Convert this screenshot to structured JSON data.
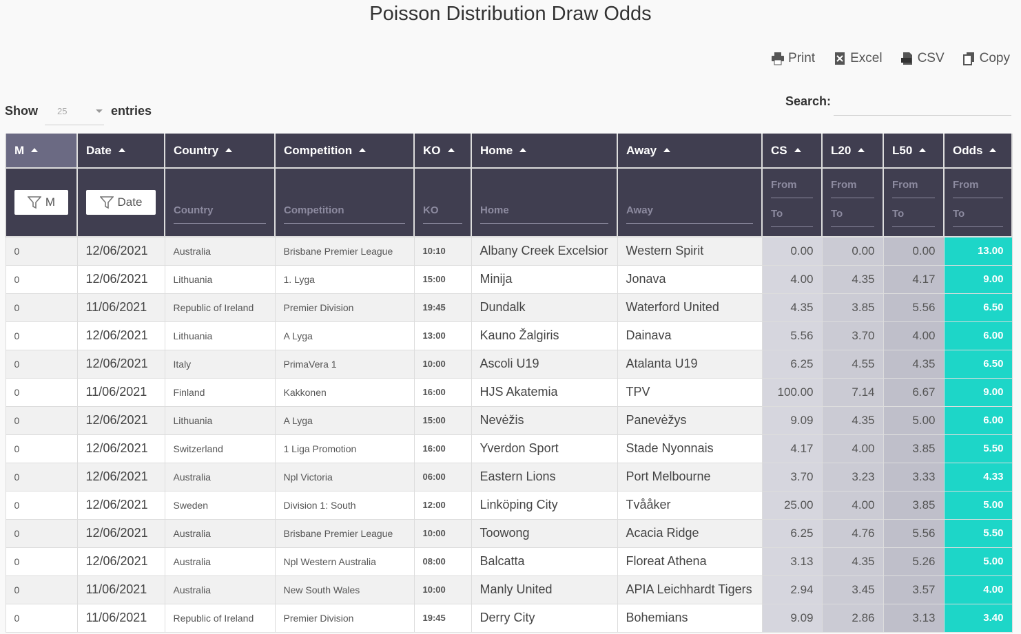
{
  "title": "Poisson Distribution Draw Odds",
  "toolbar": [
    "Print",
    "Excel",
    "CSV",
    "Copy"
  ],
  "length": {
    "show": "Show",
    "value": "25",
    "entries": "entries"
  },
  "search": {
    "label": "Search:"
  },
  "table": {
    "columns": [
      "M",
      "Date",
      "Country",
      "Competition",
      "KO",
      "Home",
      "Away",
      "CS",
      "L20",
      "L50",
      "Odds"
    ],
    "filters": [
      "M",
      "Date",
      "Country",
      "Competition",
      "KO",
      "Home",
      "Away"
    ],
    "range": {
      "from": "From",
      "to": "To"
    },
    "rows": [
      [
        "0",
        "12/06/2021",
        "Australia",
        "Brisbane Premier League",
        "10:10",
        "Albany Creek Excelsior",
        "Western Spirit",
        "0.00",
        "0.00",
        "0.00",
        "13.00"
      ],
      [
        "0",
        "12/06/2021",
        "Lithuania",
        "1. Lyga",
        "15:00",
        "Minija",
        "Jonava",
        "4.00",
        "4.35",
        "4.17",
        "9.00"
      ],
      [
        "0",
        "11/06/2021",
        "Republic of Ireland",
        "Premier Division",
        "19:45",
        "Dundalk",
        "Waterford United",
        "4.35",
        "3.85",
        "5.56",
        "6.50"
      ],
      [
        "0",
        "12/06/2021",
        "Lithuania",
        "A Lyga",
        "13:00",
        "Kauno Žalgiris",
        "Dainava",
        "5.56",
        "3.70",
        "4.00",
        "6.00"
      ],
      [
        "0",
        "12/06/2021",
        "Italy",
        "PrimaVera 1",
        "10:00",
        "Ascoli U19",
        "Atalanta U19",
        "6.25",
        "4.55",
        "4.35",
        "6.50"
      ],
      [
        "0",
        "11/06/2021",
        "Finland",
        "Kakkonen",
        "16:00",
        "HJS Akatemia",
        "TPV",
        "100.00",
        "7.14",
        "6.67",
        "9.00"
      ],
      [
        "0",
        "12/06/2021",
        "Lithuania",
        "A Lyga",
        "15:00",
        "Nevėžis",
        "Panevėžys",
        "9.09",
        "4.35",
        "5.00",
        "6.00"
      ],
      [
        "0",
        "12/06/2021",
        "Switzerland",
        "1 Liga Promotion",
        "16:00",
        "Yverdon Sport",
        "Stade Nyonnais",
        "4.17",
        "4.00",
        "3.85",
        "5.50"
      ],
      [
        "0",
        "12/06/2021",
        "Australia",
        "Npl Victoria",
        "06:00",
        "Eastern Lions",
        "Port Melbourne",
        "3.70",
        "3.23",
        "3.33",
        "4.33"
      ],
      [
        "0",
        "12/06/2021",
        "Sweden",
        "Division 1: South",
        "12:00",
        "Linköping City",
        "Tvååker",
        "25.00",
        "4.00",
        "3.85",
        "5.00"
      ],
      [
        "0",
        "12/06/2021",
        "Australia",
        "Brisbane Premier League",
        "10:00",
        "Toowong",
        "Acacia Ridge",
        "6.25",
        "4.76",
        "5.56",
        "5.50"
      ],
      [
        "0",
        "12/06/2021",
        "Australia",
        "Npl Western Australia",
        "08:00",
        "Balcatta",
        "Floreat Athena",
        "3.13",
        "4.35",
        "5.26",
        "5.00"
      ],
      [
        "0",
        "11/06/2021",
        "Australia",
        "New South Wales",
        "10:00",
        "Manly United",
        "APIA Leichhardt Tigers",
        "2.94",
        "3.45",
        "3.57",
        "4.00"
      ],
      [
        "0",
        "11/06/2021",
        "Republic of Ireland",
        "Premier Division",
        "19:45",
        "Derry City",
        "Bohemians",
        "9.09",
        "2.86",
        "3.13",
        "3.40"
      ]
    ]
  }
}
